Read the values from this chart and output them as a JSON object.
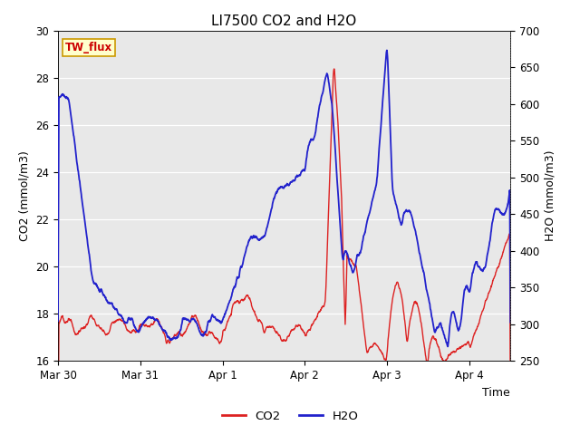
{
  "title": "LI7500 CO2 and H2O",
  "xlabel": "Time",
  "ylabel_left": "CO2 (mmol/m3)",
  "ylabel_right": "H2O (mmol/m3)",
  "ylim_left": [
    16,
    30
  ],
  "ylim_right": [
    250,
    700
  ],
  "legend_label": "TW_flux",
  "co2_color": "#dd2222",
  "h2o_color": "#2222cc",
  "bg_color": "#e8e8e8",
  "fig_bg": "#ffffff",
  "title_fontsize": 11,
  "axis_fontsize": 9,
  "tick_fontsize": 8.5,
  "legend_box_color": "#ffffcc",
  "legend_box_edge": "#cc9900",
  "xlim": [
    0,
    132
  ],
  "x_ticks": [
    0,
    24,
    48,
    72,
    96,
    120
  ],
  "x_labels": [
    "Mar 30",
    "Mar 31",
    "Apr 1",
    "Apr 2",
    "Apr 3",
    "Apr 4"
  ]
}
